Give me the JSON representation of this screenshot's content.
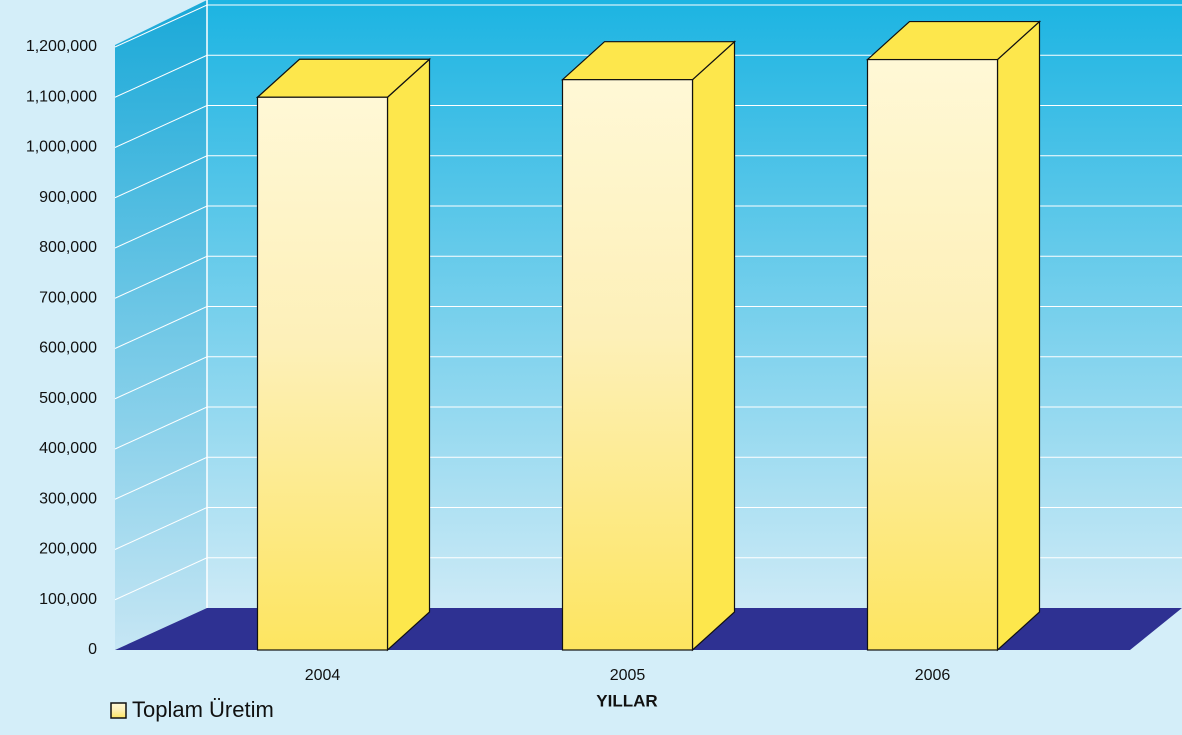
{
  "chart_data": {
    "type": "bar3d",
    "x_label": "YILLAR",
    "categories": [
      "2004",
      "2005",
      "2006"
    ],
    "series": [
      {
        "name": "Toplam Üretim",
        "color": "#fde74c",
        "values": [
          1100000,
          1135000,
          1175000
        ]
      }
    ],
    "ylim": [
      0,
      1200000
    ],
    "yticks": [
      0,
      {
        "value": 100000,
        "label": "100,000"
      },
      {
        "value": 200000,
        "label": "200,000"
      },
      {
        "value": 300000,
        "label": "300,000"
      },
      {
        "value": 400000,
        "label": "400,000"
      },
      {
        "value": 500000,
        "label": "500,000"
      },
      {
        "value": 600000,
        "label": "600,000"
      },
      {
        "value": 700000,
        "label": "700,000"
      },
      {
        "value": 800000,
        "label": "800,000"
      },
      {
        "value": 900000,
        "label": "900,000"
      },
      {
        "value": 1000000,
        "label": "1,000,000"
      },
      {
        "value": 1100000,
        "label": "1,100,000"
      },
      {
        "value": 1200000,
        "label": "1,200,000"
      }
    ],
    "grid": true
  }
}
